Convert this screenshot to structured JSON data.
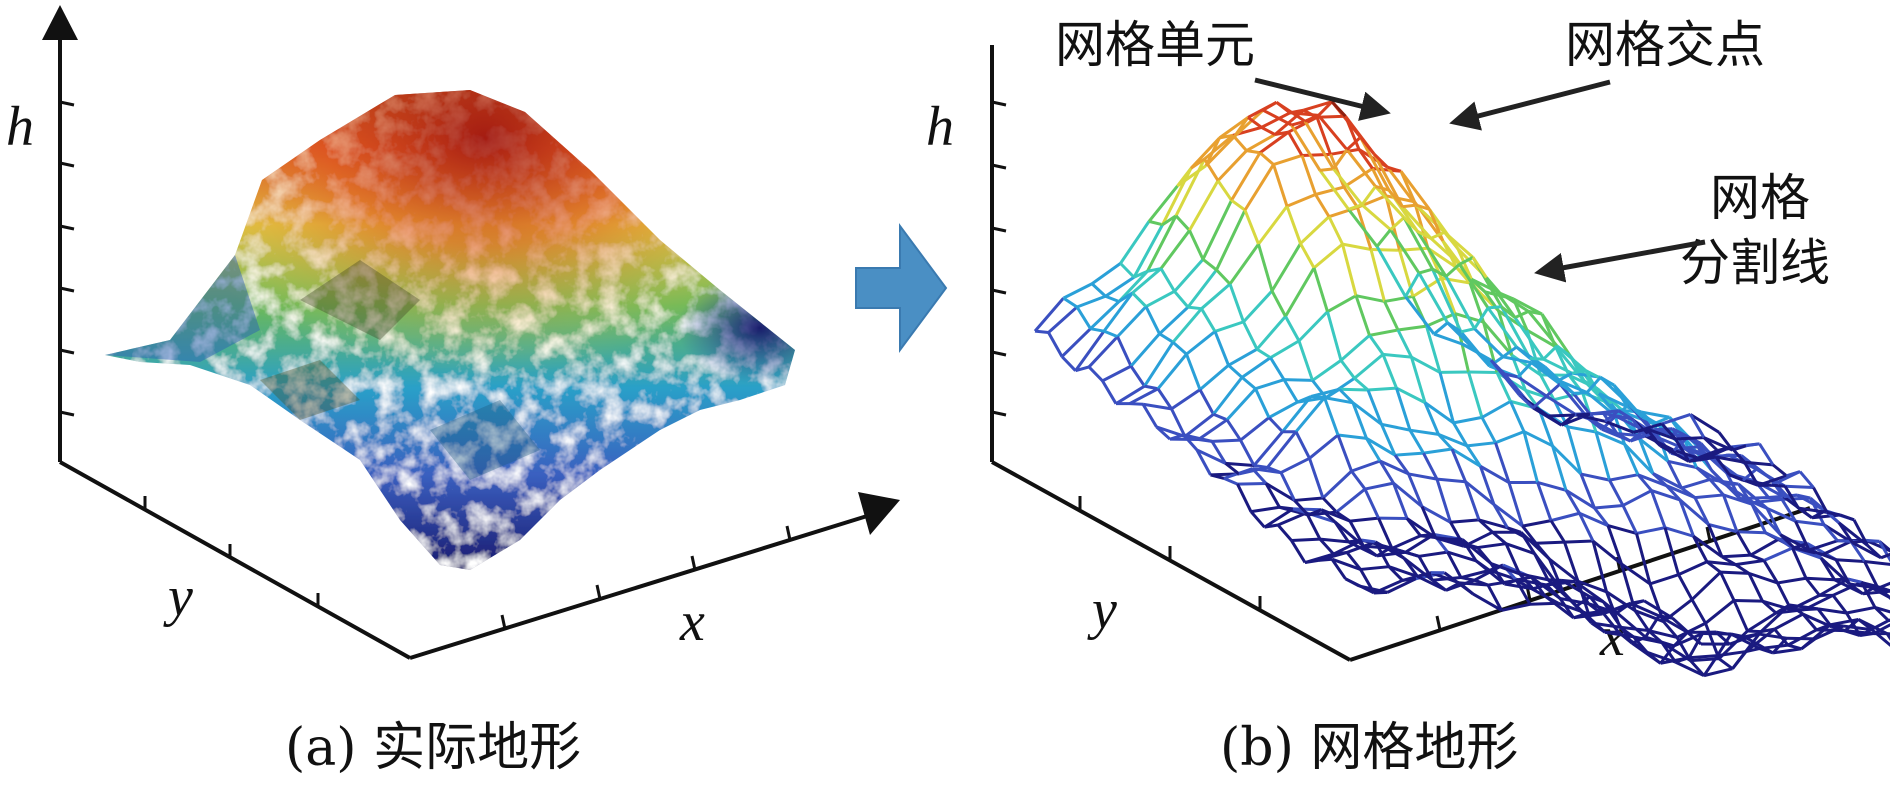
{
  "panel_a": {
    "caption": "(a) 实际地形",
    "axes": {
      "h": "h",
      "x": "x",
      "y": "y"
    }
  },
  "panel_b": {
    "caption": "(b) 网格地形",
    "axes": {
      "h": "h",
      "x": "x",
      "y": "y"
    },
    "annotations": {
      "cell": "网格单元",
      "node": "网格交点",
      "divider_line1": "网格",
      "divider_line2": "分割线"
    }
  },
  "transition_arrow": {
    "color": "#4a8fc4",
    "icon": "right-arrow-icon"
  },
  "colors": {
    "terrain_ramp": [
      "#1a1a80",
      "#3a4fc0",
      "#2aa0d8",
      "#3ac8c0",
      "#60c860",
      "#d8d840",
      "#e8a030",
      "#d84020",
      "#902010"
    ],
    "axis": "#111111"
  }
}
